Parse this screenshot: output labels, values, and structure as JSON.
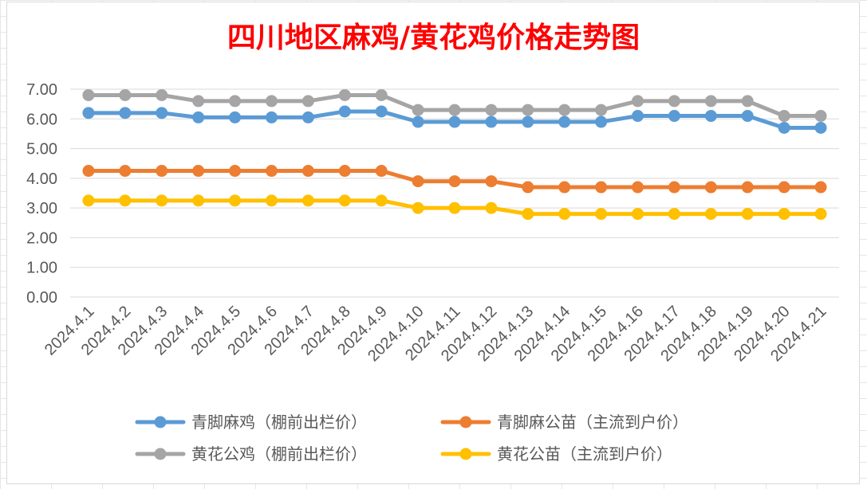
{
  "chart_data": {
    "type": "line",
    "title": "四川地区麻鸡/黄花鸡价格走势图",
    "categories": [
      "2024.4.1",
      "2024.4.2",
      "2024.4.3",
      "2024.4.4",
      "2024.4.5",
      "2024.4.6",
      "2024.4.7",
      "2024.4.8",
      "2024.4.9",
      "2024.4.10",
      "2024.4.11",
      "2024.4.12",
      "2024.4.13",
      "2024.4.14",
      "2024.4.15",
      "2024.4.16",
      "2024.4.17",
      "2024.4.18",
      "2024.4.19",
      "2024.4.20",
      "2024.4.21"
    ],
    "ylim": [
      0,
      7
    ],
    "yticks": [
      "0.00",
      "1.00",
      "2.00",
      "3.00",
      "4.00",
      "5.00",
      "6.00",
      "7.00"
    ],
    "grid": true,
    "legend_position": "bottom",
    "series": [
      {
        "name": "青脚麻鸡（棚前出栏价）",
        "color": "#5b9bd5",
        "values": [
          6.2,
          6.2,
          6.2,
          6.05,
          6.05,
          6.05,
          6.05,
          6.25,
          6.25,
          5.9,
          5.9,
          5.9,
          5.9,
          5.9,
          5.9,
          6.1,
          6.1,
          6.1,
          6.1,
          5.7,
          5.7
        ]
      },
      {
        "name": "青脚麻公苗（主流到户价）",
        "color": "#ed7d31",
        "values": [
          4.25,
          4.25,
          4.25,
          4.25,
          4.25,
          4.25,
          4.25,
          4.25,
          4.25,
          3.9,
          3.9,
          3.9,
          3.7,
          3.7,
          3.7,
          3.7,
          3.7,
          3.7,
          3.7,
          3.7,
          3.7
        ]
      },
      {
        "name": "黄花公鸡（棚前出栏价）",
        "color": "#a5a5a5",
        "values": [
          6.8,
          6.8,
          6.8,
          6.6,
          6.6,
          6.6,
          6.6,
          6.8,
          6.8,
          6.3,
          6.3,
          6.3,
          6.3,
          6.3,
          6.3,
          6.6,
          6.6,
          6.6,
          6.6,
          6.1,
          6.1
        ]
      },
      {
        "name": "黄花公苗（主流到户价）",
        "color": "#ffc000",
        "values": [
          3.25,
          3.25,
          3.25,
          3.25,
          3.25,
          3.25,
          3.25,
          3.25,
          3.25,
          3.0,
          3.0,
          3.0,
          2.8,
          2.8,
          2.8,
          2.8,
          2.8,
          2.8,
          2.8,
          2.8,
          2.8
        ]
      }
    ]
  }
}
